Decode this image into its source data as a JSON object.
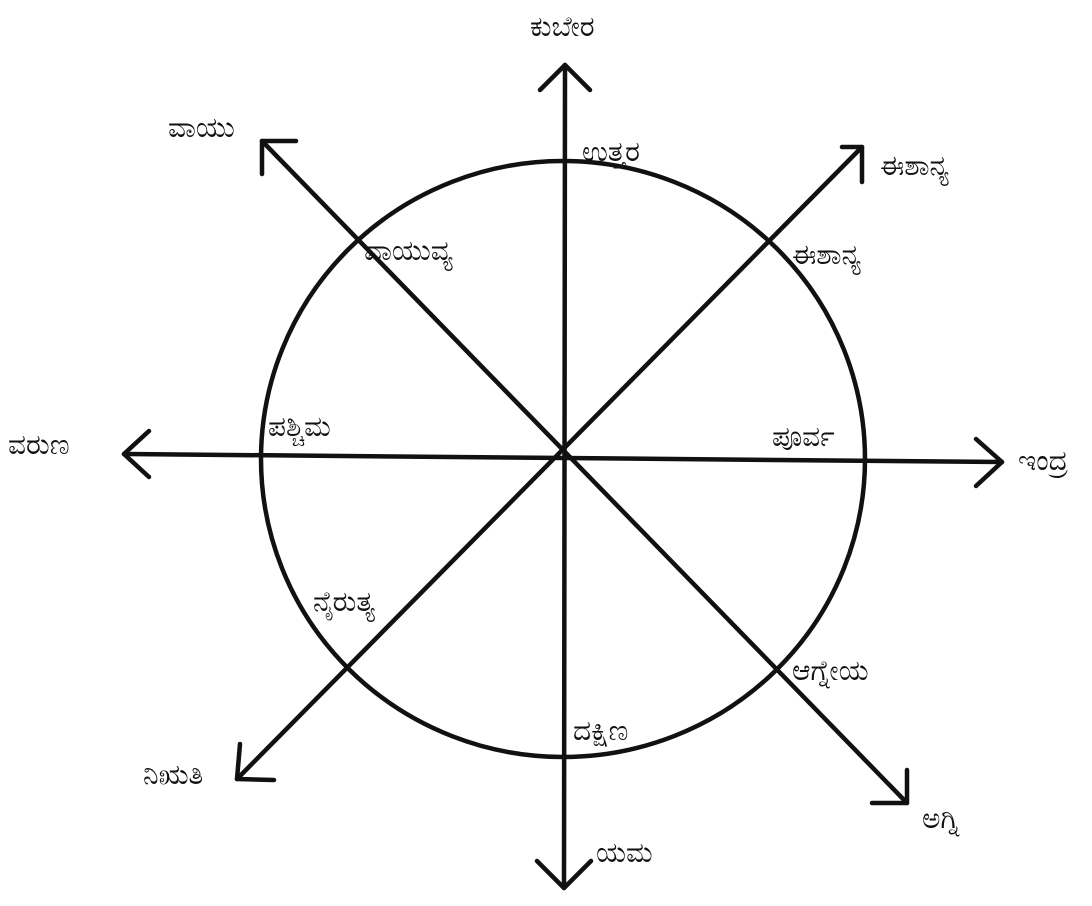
{
  "diagram": {
    "title": "",
    "directions": {
      "north": "ಉತ್ತರ",
      "northeast": "ಈಶಾನ್ಯ",
      "east": "ಪೂರ್ವ",
      "southeast": "ಆಗ್ನೇಯ",
      "south": "ದಕ್ಷಿಣ",
      "southwest": "ನೈರುತ್ಯ",
      "west": "ಪಶ್ಚಿಮ",
      "northwest": "ವಾಯುವ್ಯ"
    },
    "deities": {
      "north": "ಕುಬೇರ",
      "northeast": "ಈಶಾನ್ಯ",
      "east": "ಇಂದ್ರ",
      "southeast": "ಅಗ್ನಿ",
      "south": "ಯಮ",
      "southwest": "ನಿಋತಿ",
      "west": "ವರುಣ",
      "northwest": "ವಾಯು"
    }
  }
}
